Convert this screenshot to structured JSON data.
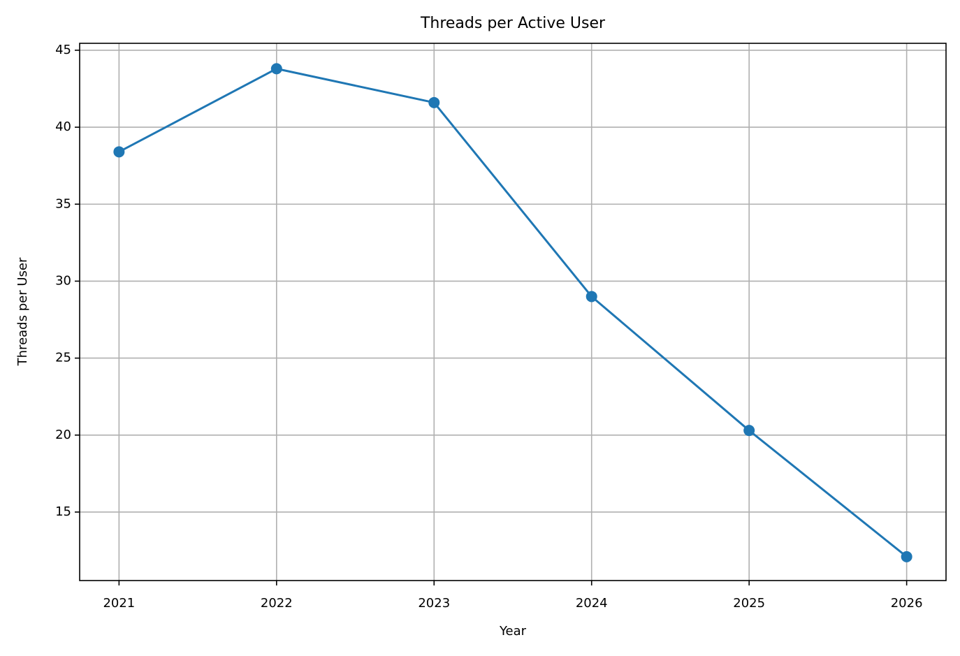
{
  "chart_data": {
    "type": "line",
    "title": "Threads per Active User",
    "x_label": "Year",
    "y_label": "Threads per User",
    "x": [
      2021,
      2022,
      2023,
      2024,
      2025,
      2026
    ],
    "series": [
      {
        "name": "Threads per User",
        "color": "#1f77b4",
        "values": [
          38.4,
          43.8,
          41.6,
          29.0,
          20.3,
          12.1
        ]
      }
    ],
    "xlim": [
      2020.75,
      2026.25
    ],
    "xticks": [
      2021,
      2022,
      2023,
      2024,
      2025,
      2026
    ],
    "ylim": [
      10.55,
      45.45
    ],
    "yticks": [
      15,
      20,
      25,
      30,
      35,
      40,
      45
    ],
    "grid": true
  }
}
